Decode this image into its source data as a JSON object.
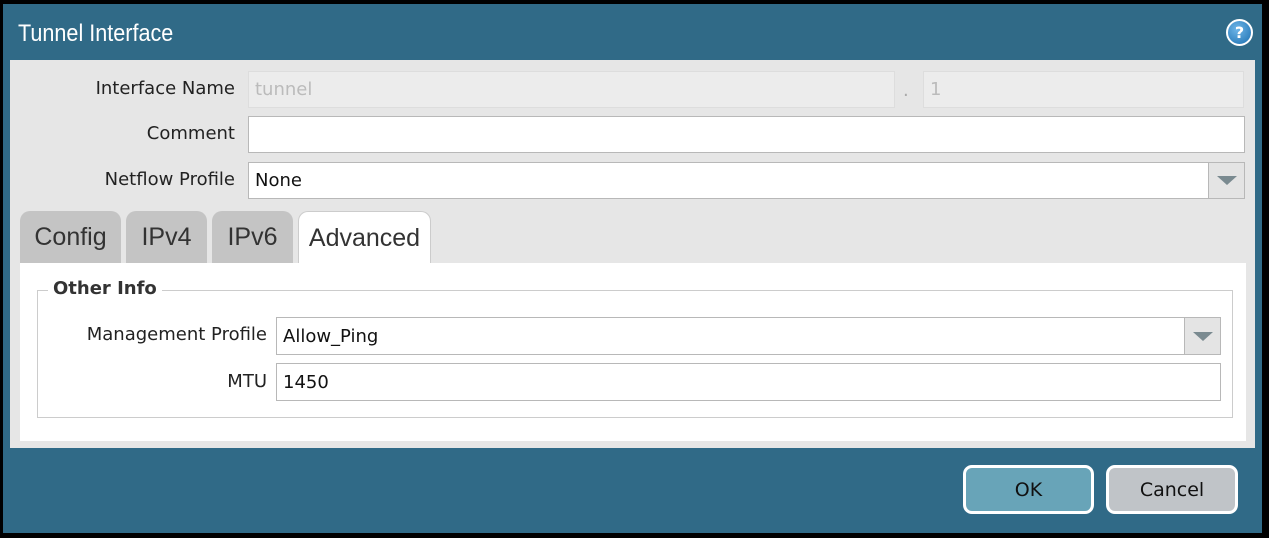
{
  "dialog": {
    "title": "Tunnel Interface",
    "help_icon": "help-icon"
  },
  "fields": {
    "interface_name_label": "Interface Name",
    "interface_name_value": "tunnel",
    "separator": ".",
    "interface_suffix": "1",
    "comment_label": "Comment",
    "comment_value": "",
    "netflow_label": "Netflow Profile",
    "netflow_value": "None"
  },
  "tabs": [
    {
      "label": "Config"
    },
    {
      "label": "IPv4"
    },
    {
      "label": "IPv6"
    },
    {
      "label": "Advanced",
      "active": true
    }
  ],
  "advanced": {
    "section": "Other Info",
    "mgmt_label": "Management Profile",
    "mgmt_value": "Allow_Ping",
    "mtu_label": "MTU",
    "mtu_value": "1450"
  },
  "buttons": {
    "ok": "OK",
    "cancel": "Cancel"
  },
  "colors": {
    "title_bar": "#306a87",
    "ok": "#68a4b8",
    "cancel": "#c0c4c8"
  }
}
